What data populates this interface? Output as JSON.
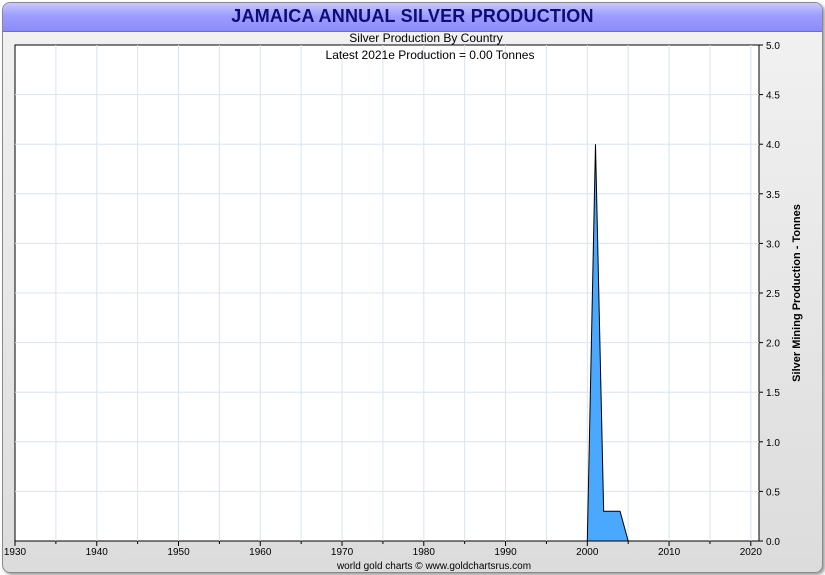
{
  "title": "JAMAICA ANNUAL SILVER PRODUCTION",
  "subtitle": "Silver Production By Country",
  "annotation": "Latest 2021e  Production = 0.00 Tonnes",
  "footer": "world gold charts © www.goldchartsrus.com",
  "colors": {
    "title_text": "#0d0d7a",
    "area_fill": "#4aa8ff",
    "area_stroke": "#000000",
    "grid": "#d8e4f0"
  },
  "chart_data": {
    "type": "area",
    "title": "JAMAICA ANNUAL SILVER PRODUCTION",
    "subtitle": "Silver Production By Country",
    "xlabel": "",
    "ylabel": "Silver Mining Production - Tonnes",
    "xlim": [
      1930,
      2021
    ],
    "ylim": [
      0,
      5
    ],
    "grid": true,
    "x_ticks": [
      "1930",
      "1940",
      "1950",
      "1960",
      "1970",
      "1980",
      "1990",
      "2000",
      "2010",
      "2020"
    ],
    "y_ticks": [
      "0.0",
      "0.5",
      "1.0",
      "1.5",
      "2.0",
      "2.5",
      "3.0",
      "3.5",
      "4.0",
      "4.5",
      "5.0"
    ],
    "series": [
      {
        "x": [
          1999,
          2000,
          2001,
          2002,
          2003,
          2004,
          2005,
          2006
        ],
        "y": [
          0,
          0,
          4.0,
          0.3,
          0.3,
          0.3,
          0,
          0
        ]
      }
    ]
  }
}
